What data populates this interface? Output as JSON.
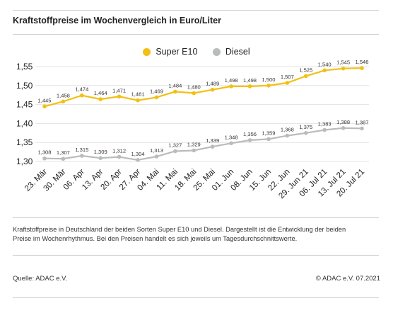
{
  "title": "Kraftstoffpreise im Wochenvergleich in Euro/Liter",
  "legend": [
    {
      "label": "Super E10",
      "color": "#f2c014"
    },
    {
      "label": "Diesel",
      "color": "#b9bcbc"
    }
  ],
  "note": "Kraftstoffpreise in Deutschland der beiden Sorten Super E10 und Diesel. Dargestellt ist die Entwicklung der beiden Preise im Wochenrhythmus. Bei den Preisen handelt es sich jeweils um Tagesdurchschnittswerte.",
  "source": "Quelle: ADAC e.V.",
  "copyright": "© ADAC e.V. 07.2021",
  "chart_data": {
    "type": "line",
    "title": "Kraftstoffpreise im Wochenvergleich in Euro/Liter",
    "categories": [
      "23. Mär",
      "30. Mär",
      "06. Apr",
      "13. Apr",
      "20. Apr",
      "27. Apr",
      "04. Mai",
      "11. Mai",
      "18. Mai",
      "25. Mai",
      "01. Jun",
      "08. Jun",
      "15. Jun",
      "22. Jun",
      "29. Jun 21",
      "06. Jul 21",
      "13. Jul 21",
      "20. Jul 21"
    ],
    "series": [
      {
        "name": "Super E10",
        "color": "#f2c014",
        "values": [
          1.445,
          1.458,
          1.474,
          1.464,
          1.471,
          1.461,
          1.469,
          1.484,
          1.48,
          1.489,
          1.498,
          1.498,
          1.5,
          1.507,
          1.525,
          1.54,
          1.545,
          1.546
        ],
        "labels": [
          "1,445",
          "1,458",
          "1,474",
          "1,464",
          "1,471",
          "1,461",
          "1,469",
          "1,484",
          "1,480",
          "1,489",
          "1,498",
          "1,498",
          "1,500",
          "1,507",
          "1,525",
          "1,540",
          "1,545",
          "1,546"
        ]
      },
      {
        "name": "Diesel",
        "color": "#b9bcbc",
        "values": [
          1.308,
          1.307,
          1.315,
          1.309,
          1.312,
          1.304,
          1.313,
          1.327,
          1.329,
          1.339,
          1.348,
          1.356,
          1.359,
          1.368,
          1.375,
          1.383,
          1.388,
          1.387
        ],
        "labels": [
          "1,308",
          "1,307",
          "1,315",
          "1,309",
          "1,312",
          "1,304",
          "1,313",
          "1,327",
          "1,329",
          "1,339",
          "1,348",
          "1,356",
          "1,359",
          "1,368",
          "1,375",
          "1,383",
          "1,388",
          "1,387"
        ]
      }
    ],
    "yticks": [
      1.3,
      1.35,
      1.4,
      1.45,
      1.5,
      1.55
    ],
    "ytick_labels": [
      "1,30",
      "1,35",
      "1,40",
      "1,45",
      "1,50",
      "1,55"
    ],
    "ylim": [
      1.3,
      1.55
    ],
    "grid": "horizontal",
    "legend_position": "top-center"
  }
}
